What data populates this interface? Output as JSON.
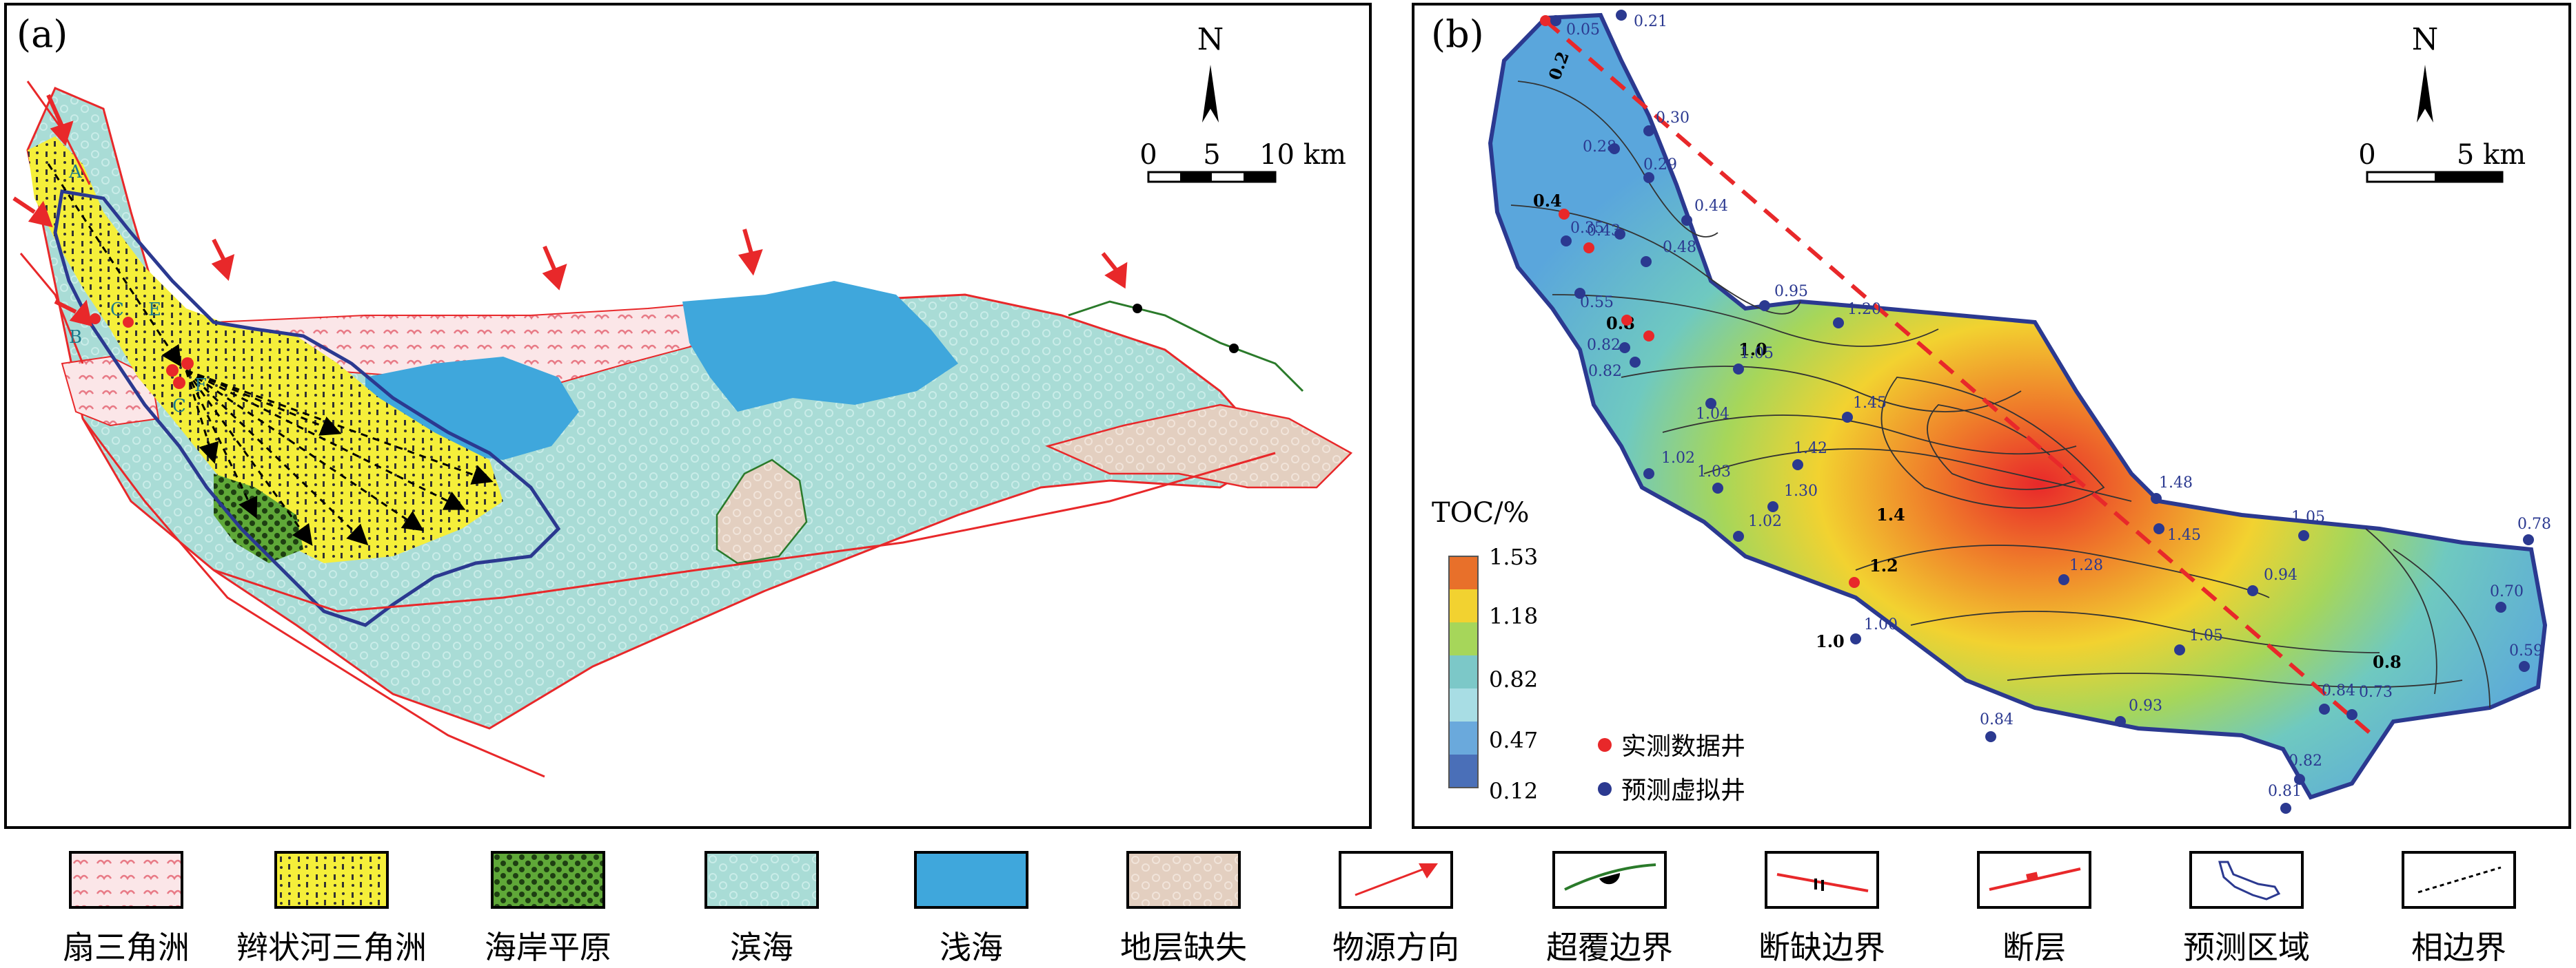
{
  "panel_a": {
    "label": "(a)",
    "north": "N",
    "scale_ticks": [
      "0",
      "5",
      "10 km"
    ],
    "section_letters": [
      "A",
      "B",
      "C",
      "E",
      "C",
      "F"
    ]
  },
  "panel_b": {
    "label": "(b)",
    "north": "N",
    "scale_ticks": [
      "0",
      "5 km"
    ],
    "colorbar_title": "TOC/%",
    "colorbar_ticks": [
      "1.53",
      "1.18",
      "0.82",
      "0.47",
      "0.12"
    ],
    "colorbar_colors": [
      "#e8702a",
      "#f2d230",
      "#a6d65a",
      "#7cc8c8",
      "#a8dde4",
      "#6aa9dc",
      "#4a6fb8"
    ],
    "contour_labels": [
      "0.2",
      "0.4",
      "0.8",
      "1.0",
      "1.4",
      "1.2",
      "1.0",
      "0.8"
    ],
    "well_values": [
      "0.05",
      "0.21",
      "0.30",
      "0.28",
      "0.29",
      "0.44",
      "0.35",
      "0.43",
      "0.48",
      "0.55",
      "0.95",
      "1.20",
      "0.82",
      "1.05",
      "0.82",
      "1.04",
      "1.45",
      "1.02",
      "1.03",
      "1.42",
      "1.30",
      "1.02",
      "1.48",
      "1.45",
      "1.05",
      "0.78",
      "1.28",
      "0.94",
      "0.70",
      "1.00",
      "1.05",
      "0.59",
      "0.84",
      "0.73",
      "0.84",
      "0.93",
      "0.82",
      "0.81"
    ],
    "legend_measured": "实测数据井",
    "legend_predicted": "预测虚拟井"
  },
  "legend": [
    {
      "key": "fan-delta",
      "label": "扇三角洲",
      "color": "#f7c9cf"
    },
    {
      "key": "braided-river-delta",
      "label": "辫状河三角洲",
      "color": "#f5ef3a"
    },
    {
      "key": "coastal-plain",
      "label": "海岸平原",
      "color": "#5fa838"
    },
    {
      "key": "littoral",
      "label": "滨海",
      "color": "#a9dcd6"
    },
    {
      "key": "shallow-sea",
      "label": "浅海",
      "color": "#3fa7dc"
    },
    {
      "key": "strata-missing",
      "label": "地层缺失",
      "color": "#e3cfc0"
    },
    {
      "key": "source-direction",
      "label": "物源方向",
      "color": "#e8282a"
    },
    {
      "key": "onlap-boundary",
      "label": "超覆边界",
      "color": "#2a7a2a"
    },
    {
      "key": "hiatus-boundary",
      "label": "断缺边界",
      "color": "#e8282a"
    },
    {
      "key": "fault",
      "label": "断层",
      "color": "#e8282a"
    },
    {
      "key": "prediction-area",
      "label": "预测区域",
      "color": "#2b3990"
    },
    {
      "key": "facies-boundary",
      "label": "相边界",
      "color": "#000000"
    }
  ]
}
